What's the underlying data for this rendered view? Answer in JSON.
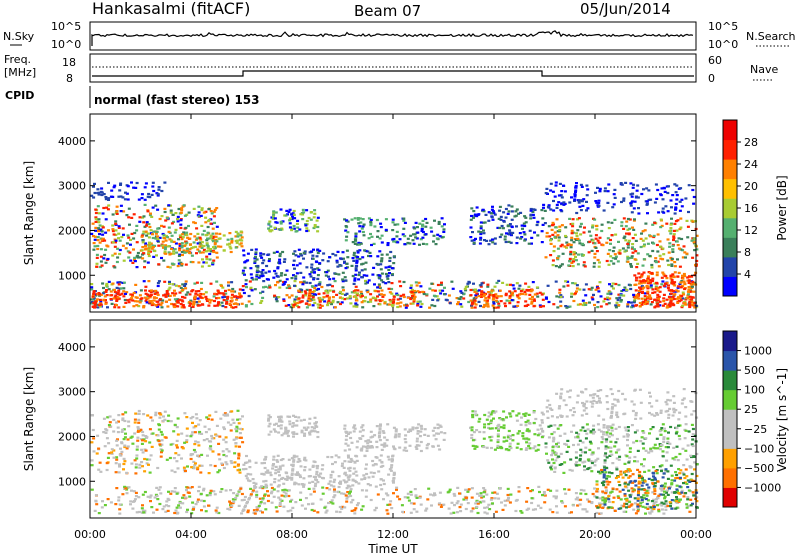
{
  "header": {
    "station": "Hankasalmi (fitACF)",
    "beam": "Beam 07",
    "date": "05/Jun/2014"
  },
  "noise_panel": {
    "left_label": "N.Sky",
    "right_label": "N.Search",
    "left_ticks": [
      "10^5",
      "10^0"
    ],
    "right_ticks": [
      "10^5",
      "10^0"
    ]
  },
  "freq_panel": {
    "left_label_line1": "Freq.",
    "left_label_line2": "[MHz]",
    "left_ticks": [
      "18",
      "8"
    ],
    "right_ticks": [
      "60",
      "0"
    ],
    "right_label": "Nave"
  },
  "cpid_panel": {
    "label": "CPID",
    "text": "normal (fast stereo) 153"
  },
  "colors": {
    "power_scale": [
      "#0000ff",
      "#2244aa",
      "#3a7f5a",
      "#55b070",
      "#a8cc33",
      "#ffc000",
      "#ff8000",
      "#ff2000",
      "#ee0000"
    ],
    "velocity_scale": [
      "#e00000",
      "#ff7000",
      "#ffa000",
      "#c0c0c0",
      "#c0c0c0",
      "#66cc33",
      "#2a8a3a",
      "#2a55aa",
      "#1a1a8a"
    ]
  },
  "chart_data": [
    {
      "type": "heatmap",
      "title": "Power",
      "ylabel": "Slant Range [km]",
      "yticks": [
        "1000",
        "2000",
        "3000",
        "4000"
      ],
      "ylim": [
        180,
        4600
      ],
      "colorbar_label": "Power [dB]",
      "colorbar_ticks": [
        "4",
        "8",
        "12",
        "16",
        "20",
        "24",
        "28"
      ],
      "scale_range": [
        0,
        30
      ]
    },
    {
      "type": "heatmap",
      "title": "Velocity",
      "ylabel": "Slant Range [km]",
      "yticks": [
        "1000",
        "2000",
        "3000",
        "4000"
      ],
      "ylim": [
        180,
        4600
      ],
      "colorbar_label": "Velocity [m s^-1]",
      "colorbar_ticks": [
        "1000",
        "500",
        "100",
        "25",
        "−25",
        "−100",
        "−500",
        "−1000"
      ],
      "xlabel": "Time UT",
      "xticks": [
        "00:00",
        "04:00",
        "08:00",
        "12:00",
        "16:00",
        "20:00",
        "00:00"
      ],
      "xlim": [
        0,
        24
      ]
    }
  ]
}
